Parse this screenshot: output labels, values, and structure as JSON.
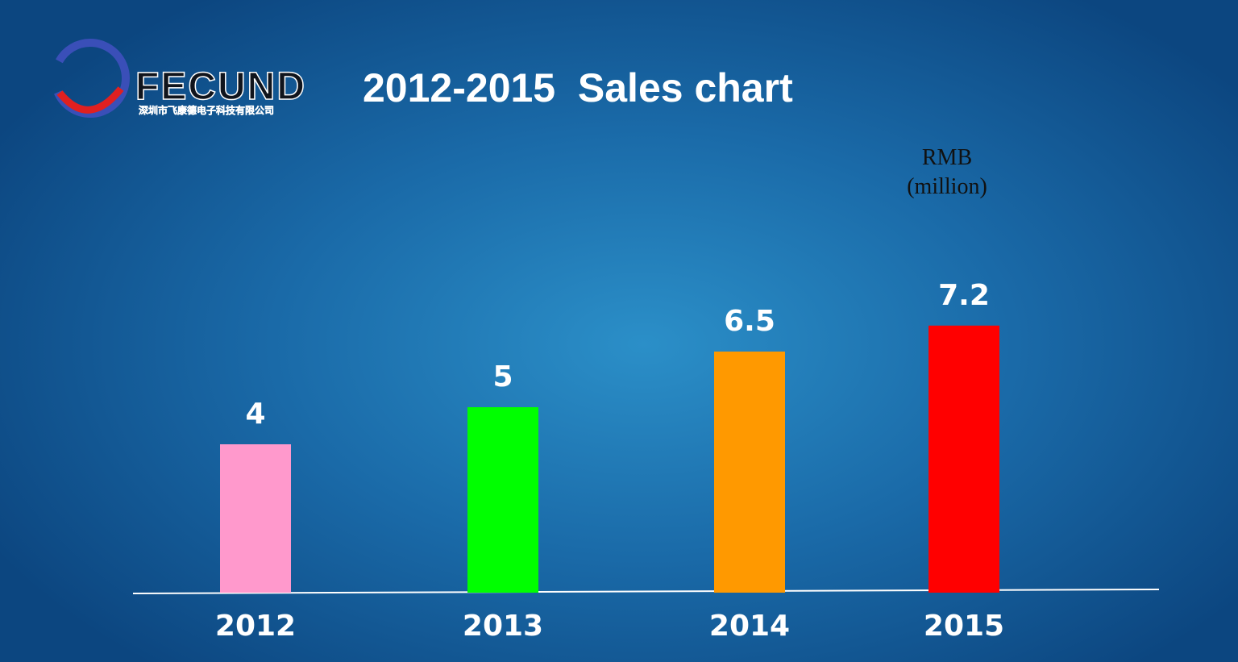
{
  "logo": {
    "name": "FECUND",
    "subtitle": "深圳市飞康德电子科技有限公司"
  },
  "chart_data": {
    "type": "bar",
    "title": "2012-2015  Sales chart",
    "unit_label": [
      "RMB",
      "(million)"
    ],
    "categories": [
      "2012",
      "2013",
      "2014",
      "2015"
    ],
    "values": [
      4,
      5,
      6.5,
      7.2
    ],
    "colors": [
      "#ff99cc",
      "#00ff00",
      "#ff9900",
      "#ff0000"
    ]
  }
}
